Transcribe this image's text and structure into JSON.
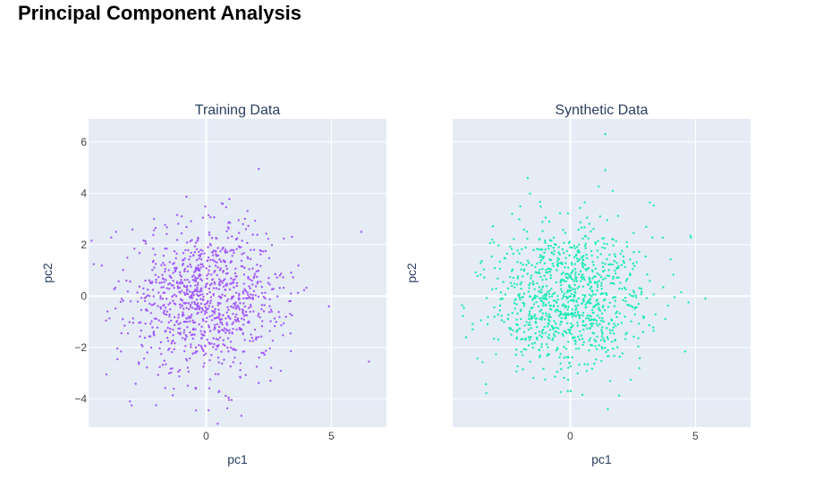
{
  "page": {
    "title": "Principal Component Analysis"
  },
  "chart_data": [
    {
      "type": "scatter",
      "title": "Training Data",
      "xlabel": "pc1",
      "ylabel": "pc2",
      "xlim": [
        -4.7,
        7.2
      ],
      "ylim": [
        -5.1,
        6.9
      ],
      "xticks": [
        0,
        5
      ],
      "yticks": [
        -4,
        -2,
        0,
        2,
        4,
        6
      ],
      "grid": true,
      "legend": "none",
      "point_count": 1000,
      "color": "#a259ff",
      "highlight_points": [
        {
          "x": 2.1,
          "y": 4.95
        },
        {
          "x": 6.2,
          "y": 2.5
        },
        {
          "x": 6.5,
          "y": -2.55
        },
        {
          "x": -2.0,
          "y": -4.25
        },
        {
          "x": -3.6,
          "y": 2.5
        },
        {
          "x": -4.0,
          "y": -0.95
        },
        {
          "x": 4.9,
          "y": -0.4
        }
      ]
    },
    {
      "type": "scatter",
      "title": "Synthetic Data",
      "xlabel": "pc1",
      "ylabel": "pc2",
      "xlim": [
        -4.7,
        7.2
      ],
      "ylim": [
        -5.1,
        6.9
      ],
      "xticks": [
        0,
        5
      ],
      "yticks": [
        -4,
        -2,
        0,
        2,
        4,
        6
      ],
      "show_ytick_labels": false,
      "grid": true,
      "legend": "none",
      "point_count": 1000,
      "color": "#1de9b6",
      "highlight_points": [
        {
          "x": 1.4,
          "y": 6.3
        },
        {
          "x": 1.4,
          "y": 4.9
        },
        {
          "x": -1.7,
          "y": 4.6
        },
        {
          "x": 5.4,
          "y": -0.1
        },
        {
          "x": 4.8,
          "y": 2.35
        },
        {
          "x": -3.9,
          "y": -1.3
        },
        {
          "x": 1.5,
          "y": -4.4
        },
        {
          "x": -0.1,
          "y": -3.7
        }
      ]
    }
  ]
}
